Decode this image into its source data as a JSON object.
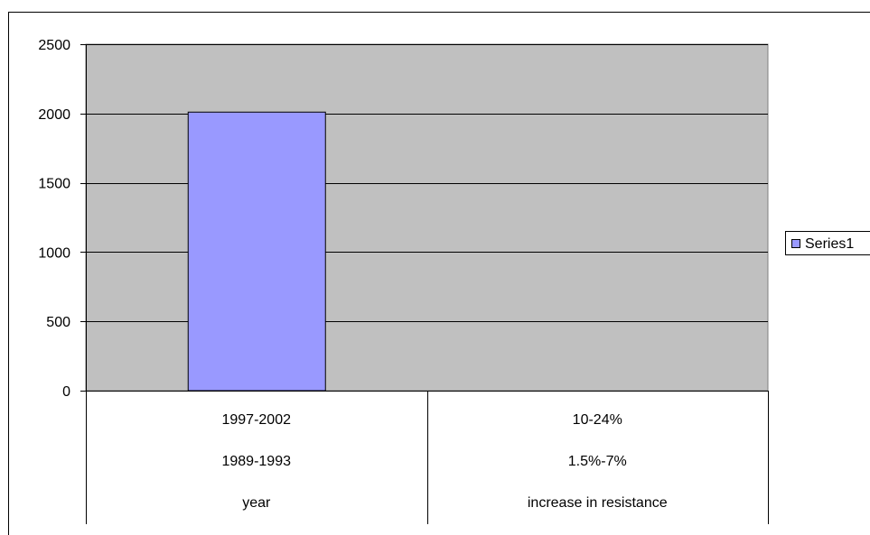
{
  "chart_data": {
    "type": "bar",
    "title": "",
    "xlabel": "",
    "ylabel": "",
    "ylim": [
      0,
      2500
    ],
    "yticks": [
      0,
      500,
      1000,
      1500,
      2000,
      2500
    ],
    "grid": true,
    "legend_position": "right",
    "categories": [
      [
        "1997-2002",
        "1989-1993",
        "year"
      ],
      [
        "10-24%",
        "1.5%-7%",
        "increase in resistance"
      ]
    ],
    "series": [
      {
        "name": "Series1",
        "values": [
          2010,
          0
        ],
        "color": "#9999ff"
      }
    ],
    "plot_background": "#c0c0c0"
  }
}
